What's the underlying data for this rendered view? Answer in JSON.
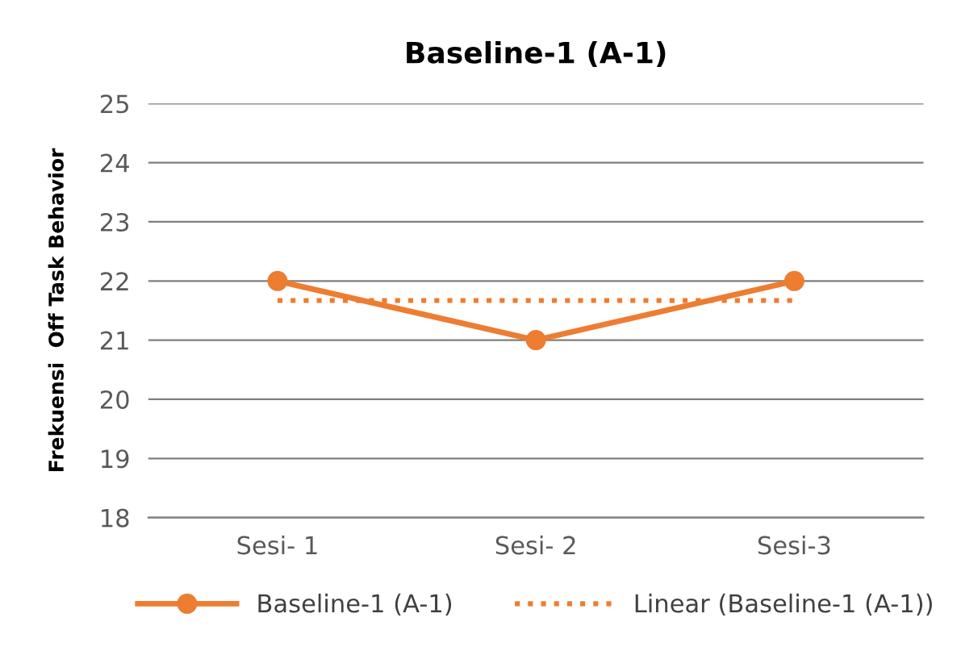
{
  "chart_data": {
    "type": "line",
    "title": "Baseline-1 (A-1)",
    "ylabel": "Frekuensi  Off Task Behavior",
    "categories": [
      "Sesi- 1",
      "Sesi- 2",
      "Sesi-3"
    ],
    "series": [
      {
        "name": "Baseline-1 (A-1)",
        "color": "#ed7d31",
        "values": [
          22,
          21,
          22
        ],
        "marker": "circle",
        "line_style": "solid"
      },
      {
        "name": "Linear (Baseline-1 (A-1))",
        "color": "#ed7d31",
        "values": [
          21.67,
          21.67,
          21.67
        ],
        "marker": "none",
        "line_style": "dotted"
      }
    ],
    "ylim": [
      18,
      25
    ],
    "yticks": [
      18,
      19,
      20,
      21,
      22,
      23,
      24,
      25
    ],
    "grid": "y",
    "legend": "bottom"
  }
}
